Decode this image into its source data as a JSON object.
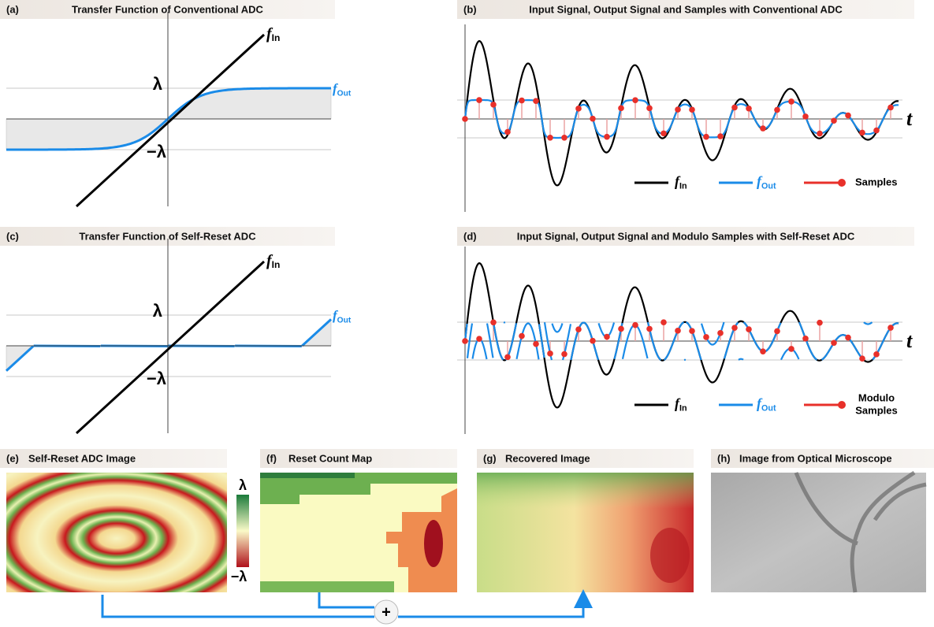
{
  "panels": [
    {
      "label": "(a)",
      "title": "Transfer Function of Conventional ADC",
      "input": {
        "symbol": "f",
        "subscript": "In"
      },
      "output": {
        "symbol": "f",
        "subscript": "Out"
      },
      "upper": "λ",
      "lower": "−λ"
    },
    {
      "label": "(b)",
      "title": "Input Signal, Output Signal and Samples with Conventional ADC",
      "time": "t",
      "legend": [
        {
          "symbol": "f",
          "subscript": "In"
        },
        {
          "symbol": "f",
          "subscript": "Out"
        },
        {
          "lines": [
            "Samples"
          ]
        }
      ]
    },
    {
      "label": "(c)",
      "title": "Transfer Function of Self-Reset ADC",
      "input": {
        "symbol": "f",
        "subscript": "In"
      },
      "output": {
        "symbol": "f",
        "subscript": "Out"
      },
      "upper": "λ",
      "lower": "−λ"
    },
    {
      "label": "(d)",
      "title": "Input Signal, Output Signal and Modulo Samples with Self-Reset ADC",
      "time": "t",
      "legend": [
        {
          "symbol": "f",
          "subscript": "In"
        },
        {
          "symbol": "f",
          "subscript": "Out"
        },
        {
          "lines": [
            "Modulo",
            "Samples"
          ]
        }
      ]
    },
    {
      "label": "(e)",
      "title": "Self-Reset ADC Image",
      "colorbar": {
        "top": "λ",
        "bottom": "−λ"
      }
    },
    {
      "label": "(f)",
      "title": "Reset Count Map"
    },
    {
      "label": "(g)",
      "title": "Recovered Image"
    },
    {
      "label": "(h)",
      "title": "Image from Optical Microscope"
    }
  ],
  "operator": "+"
}
